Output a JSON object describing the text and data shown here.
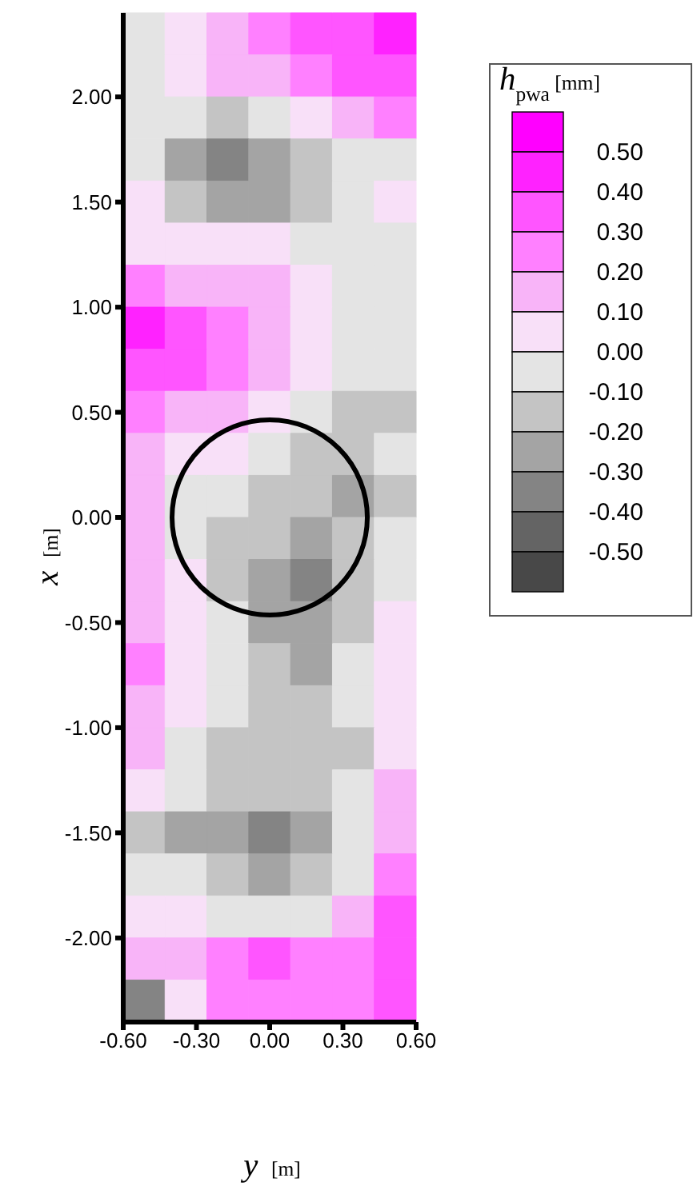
{
  "chart_data": {
    "type": "heatmap",
    "xlabel": "y [m]",
    "ylabel": "x [m]",
    "legend_title": "h$_{pwa}$ [mm]",
    "xlim": [
      -0.6,
      0.6
    ],
    "xticks": [
      {
        "value": -0.6,
        "label": "-0.60"
      },
      {
        "value": -0.3,
        "label": "-0.30"
      },
      {
        "value": 0,
        "label": "0.00"
      },
      {
        "value": 0.3,
        "label": "0.30"
      },
      {
        "value": 0.6,
        "label": "0.60"
      }
    ],
    "ylim": [
      -2.4,
      2.4
    ],
    "yticks": [
      {
        "value": -2,
        "label": "-2.00"
      },
      {
        "value": -1.5,
        "label": "-1.50"
      },
      {
        "value": -1,
        "label": "-1.00"
      },
      {
        "value": -0.5,
        "label": "-0.50"
      },
      {
        "value": 0,
        "label": "0.00"
      },
      {
        "value": 0.5,
        "label": "0.50"
      },
      {
        "value": 1,
        "label": "1.00"
      },
      {
        "value": 1.5,
        "label": "1.50"
      },
      {
        "value": 2,
        "label": "2.00"
      }
    ],
    "clim": [
      -0.6,
      0.6
    ],
    "cticks": [
      {
        "value": 0.5,
        "label": "0.50"
      },
      {
        "value": 0.4,
        "label": "0.40"
      },
      {
        "value": 0.3,
        "label": "0.30"
      },
      {
        "value": 0.2,
        "label": "0.20"
      },
      {
        "value": 0.1,
        "label": "0.10"
      },
      {
        "value": 0,
        "label": "0.00"
      },
      {
        "value": -0.1,
        "label": "-0.10"
      },
      {
        "value": -0.2,
        "label": "-0.20"
      },
      {
        "value": -0.3,
        "label": "-0.30"
      },
      {
        "value": -0.4,
        "label": "-0.40"
      },
      {
        "value": -0.5,
        "label": "-0.50"
      }
    ],
    "cells": [
      [
        -0.05,
        0.05,
        0.15,
        0.25,
        0.3,
        0.35,
        0.45
      ],
      [
        -0.05,
        0.05,
        0.1,
        0.15,
        0.25,
        0.3,
        0.35
      ],
      [
        -0.05,
        -0.05,
        -0.15,
        -0.1,
        0.05,
        0.15,
        0.25
      ],
      [
        -0.05,
        -0.25,
        -0.35,
        -0.3,
        -0.2,
        -0.05,
        -0.05
      ],
      [
        0.05,
        -0.15,
        -0.25,
        -0.25,
        -0.15,
        -0.05,
        0.05
      ],
      [
        0.05,
        0.05,
        0.05,
        0.05,
        -0.05,
        -0.05,
        -0.05
      ],
      [
        0.25,
        0.15,
        0.15,
        0.1,
        0.05,
        -0.05,
        -0.05
      ],
      [
        0.45,
        0.35,
        0.25,
        0.15,
        0.05,
        -0.05,
        -0.05
      ],
      [
        0.35,
        0.35,
        0.25,
        0.15,
        0.05,
        -0.05,
        -0.1
      ],
      [
        0.25,
        0.15,
        0.15,
        0.05,
        -0.05,
        -0.15,
        -0.15
      ],
      [
        0.15,
        0.05,
        0.05,
        -0.05,
        -0.15,
        -0.15,
        -0.1
      ],
      [
        0.15,
        -0.05,
        -0.05,
        -0.15,
        -0.15,
        -0.25,
        -0.15
      ],
      [
        0.15,
        -0.05,
        -0.15,
        -0.15,
        -0.25,
        -0.2,
        -0.1
      ],
      [
        0.15,
        0.05,
        -0.15,
        -0.25,
        -0.35,
        -0.15,
        -0.05
      ],
      [
        0.15,
        0.05,
        -0.05,
        -0.25,
        -0.3,
        -0.15,
        0.05
      ],
      [
        0.25,
        0.05,
        -0.05,
        -0.2,
        -0.25,
        -0.05,
        0.05
      ],
      [
        0.15,
        0.05,
        -0.05,
        -0.15,
        -0.15,
        -0.05,
        0.05
      ],
      [
        0.15,
        -0.05,
        -0.15,
        -0.15,
        -0.15,
        -0.15,
        0.05
      ],
      [
        0.05,
        -0.05,
        -0.15,
        -0.15,
        -0.15,
        -0.05,
        0.15
      ],
      [
        -0.15,
        -0.25,
        -0.3,
        -0.35,
        -0.25,
        -0.05,
        0.15
      ],
      [
        -0.05,
        -0.1,
        -0.2,
        -0.25,
        -0.15,
        -0.05,
        0.25
      ],
      [
        0.05,
        0.05,
        -0.05,
        -0.05,
        -0.05,
        0.15,
        0.35
      ],
      [
        0.15,
        0.15,
        0.25,
        0.35,
        0.25,
        0.25,
        0.35
      ],
      [
        -0.35,
        0.05,
        0.25,
        0.25,
        0.25,
        0.25,
        0.3
      ]
    ]
  }
}
